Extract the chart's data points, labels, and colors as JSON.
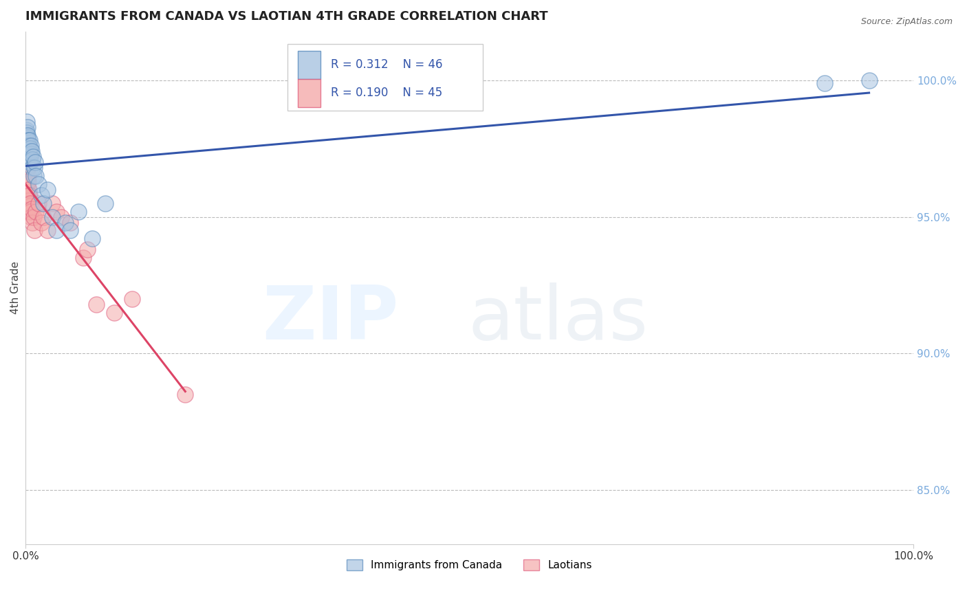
{
  "title": "IMMIGRANTS FROM CANADA VS LAOTIAN 4TH GRADE CORRELATION CHART",
  "source_text": "Source: ZipAtlas.com",
  "ylabel": "4th Grade",
  "legend_blue_label": "Immigrants from Canada",
  "legend_pink_label": "Laotians",
  "legend_r_blue": "R = 0.312",
  "legend_n_blue": "N = 46",
  "legend_r_pink": "R = 0.190",
  "legend_n_pink": "N = 45",
  "y_ticks": [
    85.0,
    90.0,
    95.0,
    100.0
  ],
  "blue_color": "#A8C4E0",
  "pink_color": "#F4AAAA",
  "blue_edge_color": "#5588BB",
  "pink_edge_color": "#E06080",
  "blue_line_color": "#3355AA",
  "pink_line_color": "#DD4466",
  "tick_color": "#7AAADD",
  "xlim": [
    0,
    100
  ],
  "ylim": [
    83.0,
    101.8
  ],
  "blue_scatter_x": [
    0.05,
    0.08,
    0.1,
    0.12,
    0.15,
    0.15,
    0.18,
    0.2,
    0.22,
    0.25,
    0.28,
    0.3,
    0.32,
    0.35,
    0.38,
    0.4,
    0.42,
    0.45,
    0.48,
    0.5,
    0.52,
    0.55,
    0.58,
    0.6,
    0.65,
    0.7,
    0.75,
    0.8,
    0.85,
    0.9,
    1.0,
    1.1,
    1.2,
    1.5,
    1.8,
    2.0,
    2.5,
    3.0,
    3.5,
    4.5,
    5.0,
    6.0,
    7.5,
    9.0,
    90.0,
    95.0
  ],
  "blue_scatter_y": [
    97.5,
    98.2,
    98.0,
    97.8,
    98.5,
    97.2,
    98.1,
    97.9,
    98.3,
    98.0,
    97.6,
    97.2,
    97.8,
    97.5,
    97.3,
    97.0,
    97.6,
    97.4,
    97.1,
    97.8,
    97.5,
    97.2,
    97.0,
    97.3,
    97.6,
    97.4,
    97.1,
    96.8,
    97.2,
    96.5,
    96.8,
    97.0,
    96.5,
    96.2,
    95.8,
    95.5,
    96.0,
    95.0,
    94.5,
    94.8,
    94.5,
    95.2,
    94.2,
    95.5,
    99.9,
    100.0
  ],
  "pink_scatter_x": [
    0.05,
    0.07,
    0.08,
    0.1,
    0.12,
    0.14,
    0.15,
    0.16,
    0.18,
    0.2,
    0.22,
    0.24,
    0.26,
    0.28,
    0.3,
    0.32,
    0.35,
    0.38,
    0.4,
    0.42,
    0.45,
    0.48,
    0.5,
    0.55,
    0.6,
    0.65,
    0.7,
    0.8,
    0.9,
    1.0,
    1.2,
    1.5,
    1.8,
    2.0,
    2.5,
    3.0,
    3.5,
    4.0,
    5.0,
    6.5,
    7.0,
    8.0,
    10.0,
    12.0,
    18.0
  ],
  "pink_scatter_y": [
    96.2,
    96.8,
    97.0,
    96.5,
    97.2,
    96.9,
    97.3,
    96.7,
    97.1,
    97.0,
    96.4,
    96.8,
    96.2,
    96.5,
    96.0,
    96.3,
    95.5,
    95.8,
    95.6,
    96.0,
    95.4,
    95.2,
    95.8,
    95.5,
    95.2,
    95.0,
    95.3,
    94.8,
    95.0,
    94.5,
    95.2,
    95.5,
    94.8,
    95.0,
    94.5,
    95.5,
    95.2,
    95.0,
    94.8,
    93.5,
    93.8,
    91.8,
    91.5,
    92.0,
    88.5
  ]
}
